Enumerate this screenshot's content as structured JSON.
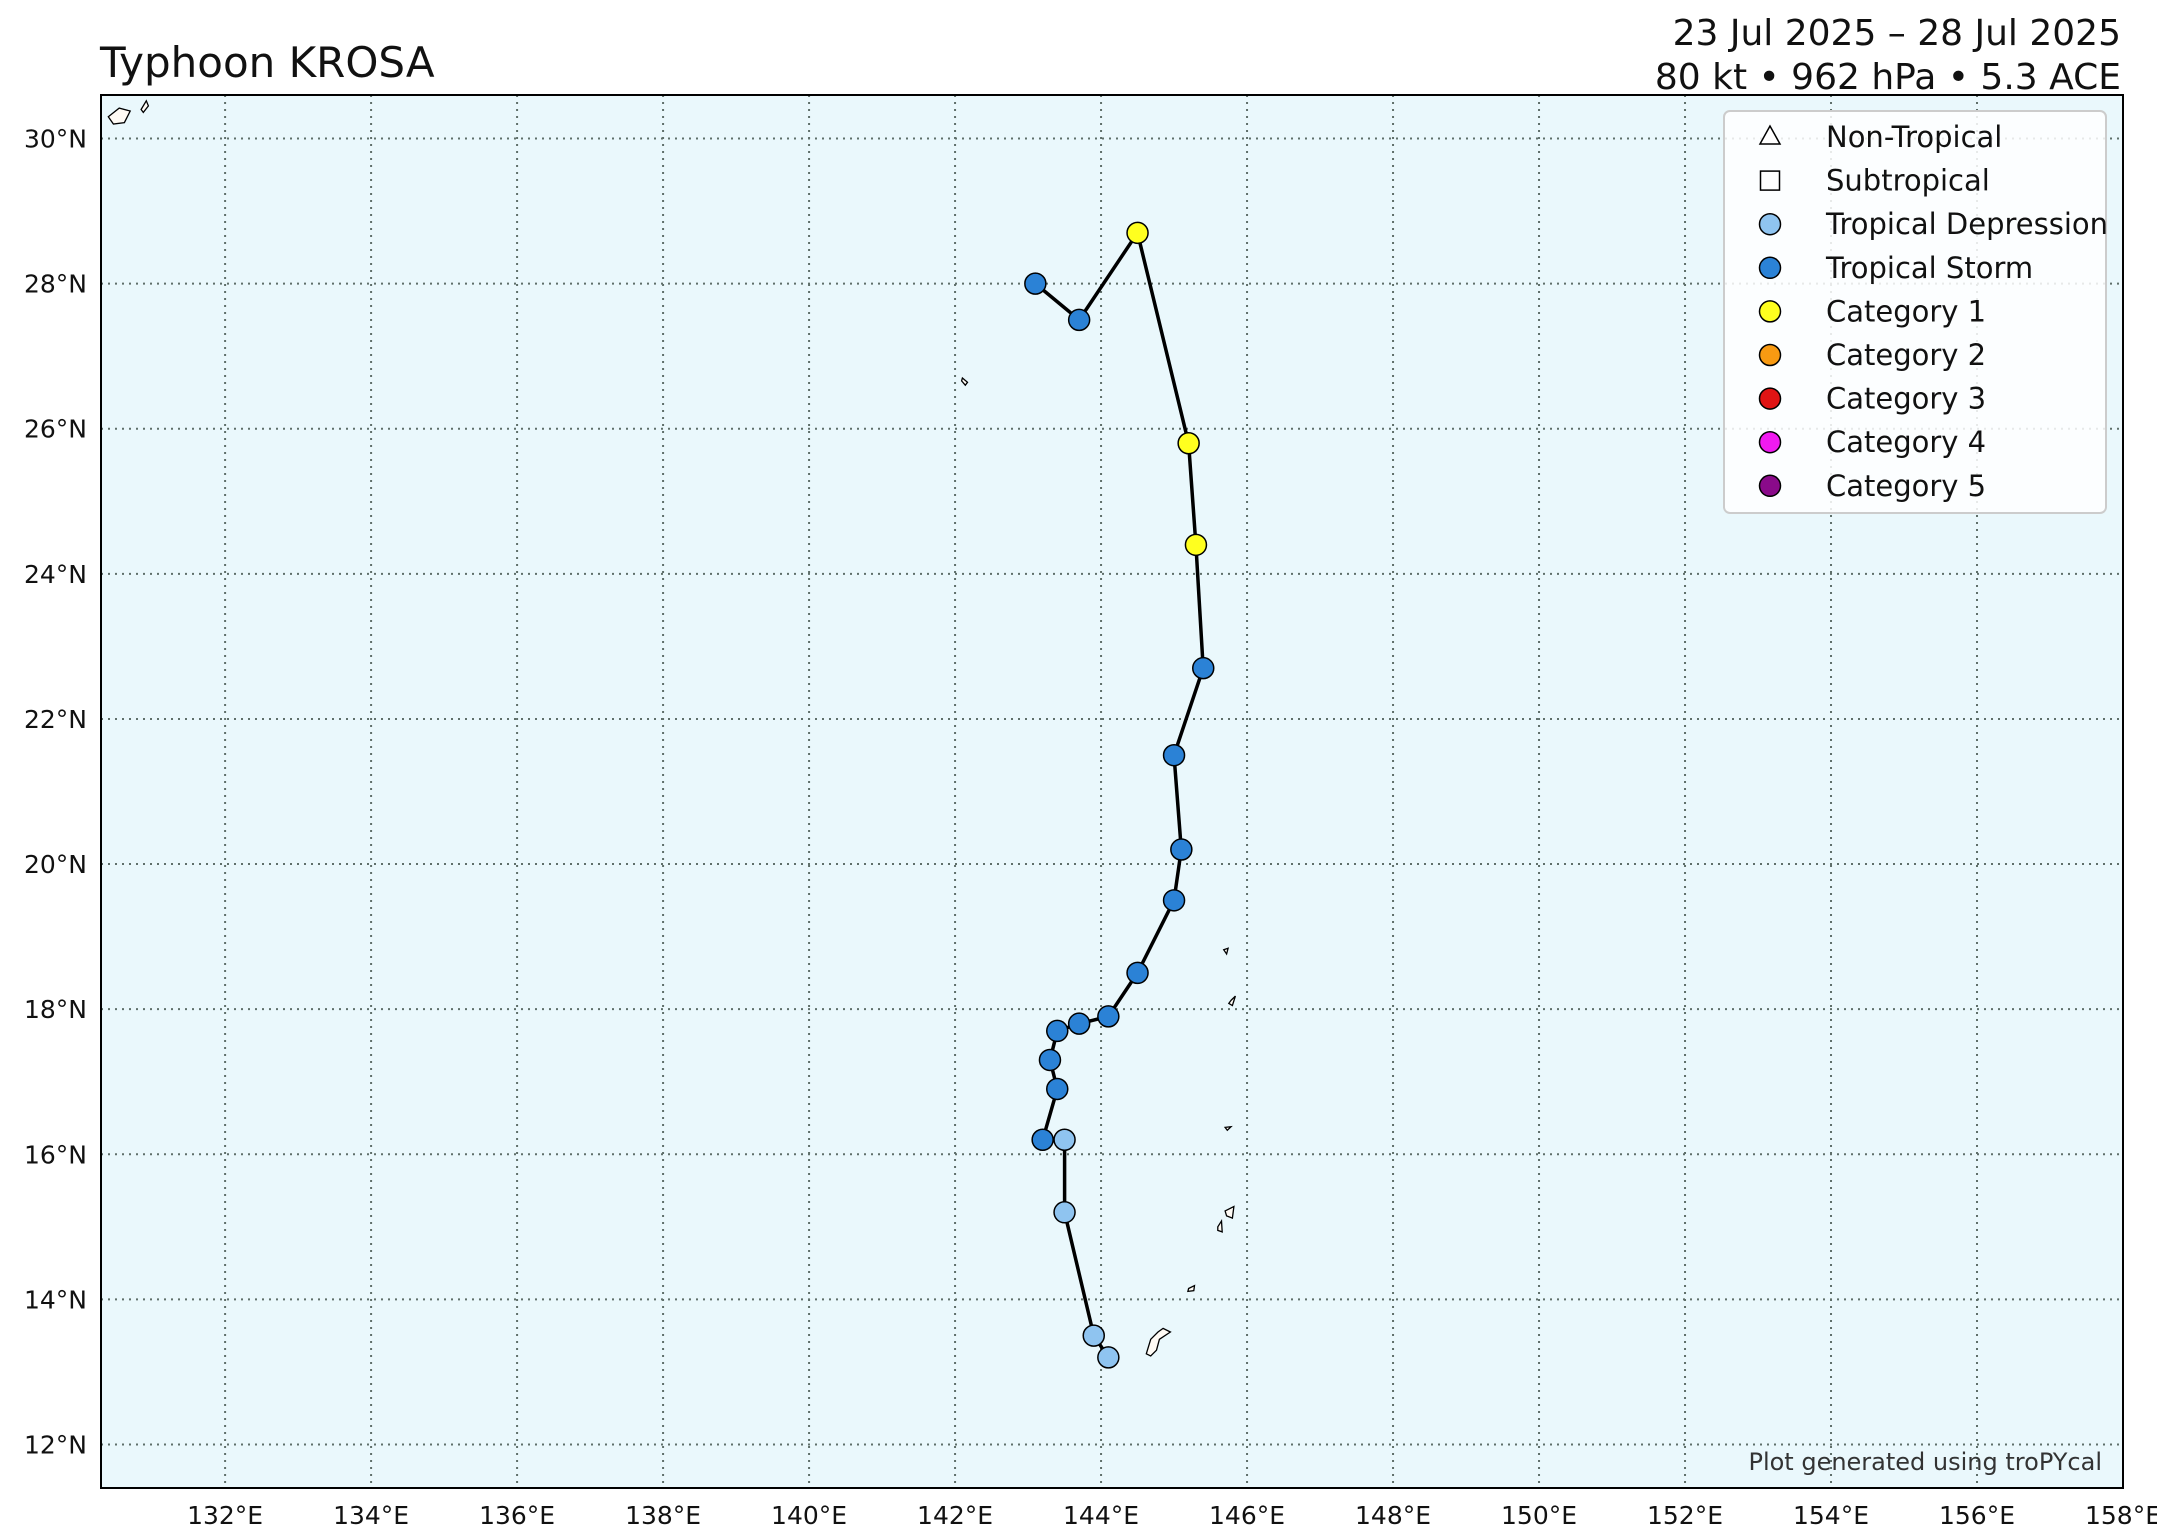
{
  "header": {
    "title": "Typhoon KROSA",
    "date_range": "23 Jul 2025 – 28 Jul 2025",
    "stats": "80 kt • 962 hPa • 5.3 ACE"
  },
  "credit": "Plot generated using troPYcal",
  "colors": {
    "ocean": "#eaf8fc",
    "land": "#fffbf5",
    "grid": "#5f6f6a",
    "track": "#000000",
    "non_tropical": "#ffffff",
    "subtropical": "#ffffff",
    "tropical_depression": "#8fc4f0",
    "tropical_storm": "#2b82d6",
    "category_1": "#ffff1f",
    "category_2": "#f89a12",
    "category_3": "#e01414",
    "category_4": "#f01af0",
    "category_5": "#8a0a8a"
  },
  "legend": [
    {
      "label": "Non-Tropical",
      "symbol": "triangle",
      "color": "#ffffff"
    },
    {
      "label": "Subtropical",
      "symbol": "square",
      "color": "#ffffff"
    },
    {
      "label": "Tropical Depression",
      "symbol": "circle",
      "color": "#8fc4f0"
    },
    {
      "label": "Tropical Storm",
      "symbol": "circle",
      "color": "#2b82d6"
    },
    {
      "label": "Category 1",
      "symbol": "circle",
      "color": "#ffff1f"
    },
    {
      "label": "Category 2",
      "symbol": "circle",
      "color": "#f89a12"
    },
    {
      "label": "Category 3",
      "symbol": "circle",
      "color": "#e01414"
    },
    {
      "label": "Category 4",
      "symbol": "circle",
      "color": "#f01af0"
    },
    {
      "label": "Category 5",
      "symbol": "circle",
      "color": "#8a0a8a"
    }
  ],
  "map": {
    "lon_range": [
      130.3,
      158.0
    ],
    "lat_range": [
      11.4,
      30.6
    ],
    "lon_ticks": [
      {
        "value": 132,
        "label": "132°E"
      },
      {
        "value": 134,
        "label": "134°E"
      },
      {
        "value": 136,
        "label": "136°E"
      },
      {
        "value": 138,
        "label": "138°E"
      },
      {
        "value": 140,
        "label": "140°E"
      },
      {
        "value": 142,
        "label": "142°E"
      },
      {
        "value": 144,
        "label": "144°E"
      },
      {
        "value": 146,
        "label": "146°E"
      },
      {
        "value": 148,
        "label": "148°E"
      },
      {
        "value": 150,
        "label": "150°E"
      },
      {
        "value": 152,
        "label": "152°E"
      },
      {
        "value": 154,
        "label": "154°E"
      },
      {
        "value": 156,
        "label": "156°E"
      },
      {
        "value": 158,
        "label": "158°E"
      }
    ],
    "lat_ticks": [
      {
        "value": 12,
        "label": "12°N"
      },
      {
        "value": 14,
        "label": "14°N"
      },
      {
        "value": 16,
        "label": "16°N"
      },
      {
        "value": 18,
        "label": "18°N"
      },
      {
        "value": 20,
        "label": "20°N"
      },
      {
        "value": 22,
        "label": "22°N"
      },
      {
        "value": 24,
        "label": "24°N"
      },
      {
        "value": 26,
        "label": "26°N"
      },
      {
        "value": 28,
        "label": "28°N"
      },
      {
        "value": 30,
        "label": "30°N"
      }
    ],
    "islands": [
      [
        [
          130.4,
          30.3
        ],
        [
          130.55,
          30.42
        ],
        [
          130.7,
          30.38
        ],
        [
          130.62,
          30.22
        ],
        [
          130.47,
          30.2
        ]
      ],
      [
        [
          130.85,
          30.4
        ],
        [
          130.92,
          30.52
        ],
        [
          130.95,
          30.45
        ],
        [
          130.88,
          30.36
        ]
      ],
      [
        [
          142.1,
          26.7
        ],
        [
          142.17,
          26.64
        ],
        [
          142.14,
          26.6
        ],
        [
          142.09,
          26.66
        ]
      ],
      [
        [
          145.68,
          18.82
        ],
        [
          145.74,
          18.84
        ],
        [
          145.72,
          18.76
        ]
      ],
      [
        [
          145.78,
          18.12
        ],
        [
          145.84,
          18.18
        ],
        [
          145.8,
          18.05
        ],
        [
          145.75,
          18.08
        ]
      ],
      [
        [
          145.7,
          16.37
        ],
        [
          145.78,
          16.38
        ],
        [
          145.73,
          16.33
        ]
      ],
      [
        [
          145.7,
          15.22
        ],
        [
          145.82,
          15.28
        ],
        [
          145.8,
          15.12
        ],
        [
          145.72,
          15.15
        ]
      ],
      [
        [
          145.6,
          15.0
        ],
        [
          145.65,
          15.08
        ],
        [
          145.66,
          14.93
        ],
        [
          145.6,
          14.95
        ]
      ],
      [
        [
          145.2,
          14.15
        ],
        [
          145.28,
          14.19
        ],
        [
          145.27,
          14.12
        ],
        [
          145.19,
          14.11
        ]
      ],
      [
        [
          144.62,
          13.25
        ],
        [
          144.68,
          13.45
        ],
        [
          144.78,
          13.55
        ],
        [
          144.85,
          13.6
        ],
        [
          144.95,
          13.55
        ],
        [
          144.8,
          13.45
        ],
        [
          144.76,
          13.3
        ],
        [
          144.68,
          13.22
        ]
      ]
    ]
  },
  "track": [
    {
      "lon": 144.1,
      "lat": 13.2,
      "category": "tropical_depression"
    },
    {
      "lon": 143.9,
      "lat": 13.5,
      "category": "tropical_depression"
    },
    {
      "lon": 143.5,
      "lat": 15.2,
      "category": "tropical_depression"
    },
    {
      "lon": 143.5,
      "lat": 16.2,
      "category": "tropical_depression"
    },
    {
      "lon": 143.2,
      "lat": 16.2,
      "category": "tropical_storm"
    },
    {
      "lon": 143.4,
      "lat": 16.9,
      "category": "tropical_storm"
    },
    {
      "lon": 143.3,
      "lat": 17.3,
      "category": "tropical_storm"
    },
    {
      "lon": 143.4,
      "lat": 17.7,
      "category": "tropical_storm"
    },
    {
      "lon": 143.7,
      "lat": 17.8,
      "category": "tropical_storm"
    },
    {
      "lon": 144.1,
      "lat": 17.9,
      "category": "tropical_storm"
    },
    {
      "lon": 144.5,
      "lat": 18.5,
      "category": "tropical_storm"
    },
    {
      "lon": 145.0,
      "lat": 19.5,
      "category": "tropical_storm"
    },
    {
      "lon": 145.1,
      "lat": 20.2,
      "category": "tropical_storm"
    },
    {
      "lon": 145.0,
      "lat": 21.5,
      "category": "tropical_storm"
    },
    {
      "lon": 145.4,
      "lat": 22.7,
      "category": "tropical_storm"
    },
    {
      "lon": 145.3,
      "lat": 24.4,
      "category": "category_1"
    },
    {
      "lon": 145.2,
      "lat": 25.8,
      "category": "category_1"
    },
    {
      "lon": 144.5,
      "lat": 28.7,
      "category": "category_1"
    },
    {
      "lon": 143.7,
      "lat": 27.5,
      "category": "tropical_storm"
    },
    {
      "lon": 143.1,
      "lat": 28.0,
      "category": "tropical_storm"
    }
  ]
}
